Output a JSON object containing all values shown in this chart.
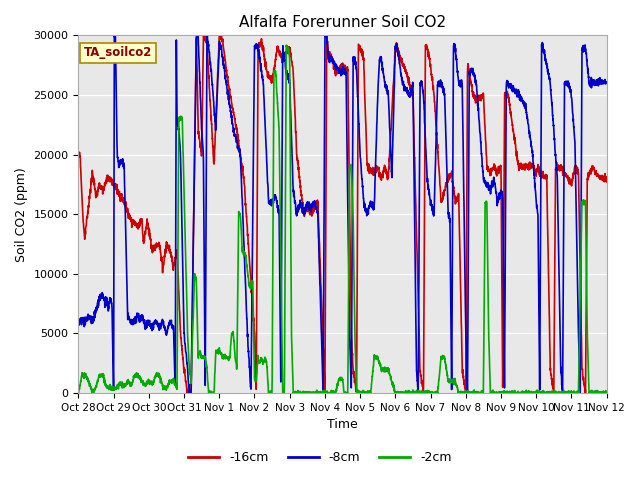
{
  "title": "Alfalfa Forerunner Soil CO2",
  "ylabel": "Soil CO2 (ppm)",
  "xlabel": "Time",
  "label_box": "TA_soilco2",
  "ylim": [
    0,
    30000
  ],
  "yticks": [
    0,
    5000,
    10000,
    15000,
    20000,
    25000,
    30000
  ],
  "xtick_labels": [
    "Oct 28",
    "Oct 29",
    "Oct 30",
    "Oct 31",
    "Nov 1",
    "Nov 2",
    "Nov 3",
    "Nov 4",
    "Nov 5",
    "Nov 6",
    "Nov 7",
    "Nov 8",
    "Nov 9",
    "Nov 10",
    "Nov 11",
    "Nov 12"
  ],
  "colors": {
    "red": "#cc0000",
    "blue": "#0000cc",
    "green": "#00aa00"
  },
  "legend_labels": [
    "-16cm",
    "-8cm",
    "-2cm"
  ],
  "bg_color": "#e8e8e8",
  "fig_bg": "#ffffff",
  "linewidth": 1.2
}
